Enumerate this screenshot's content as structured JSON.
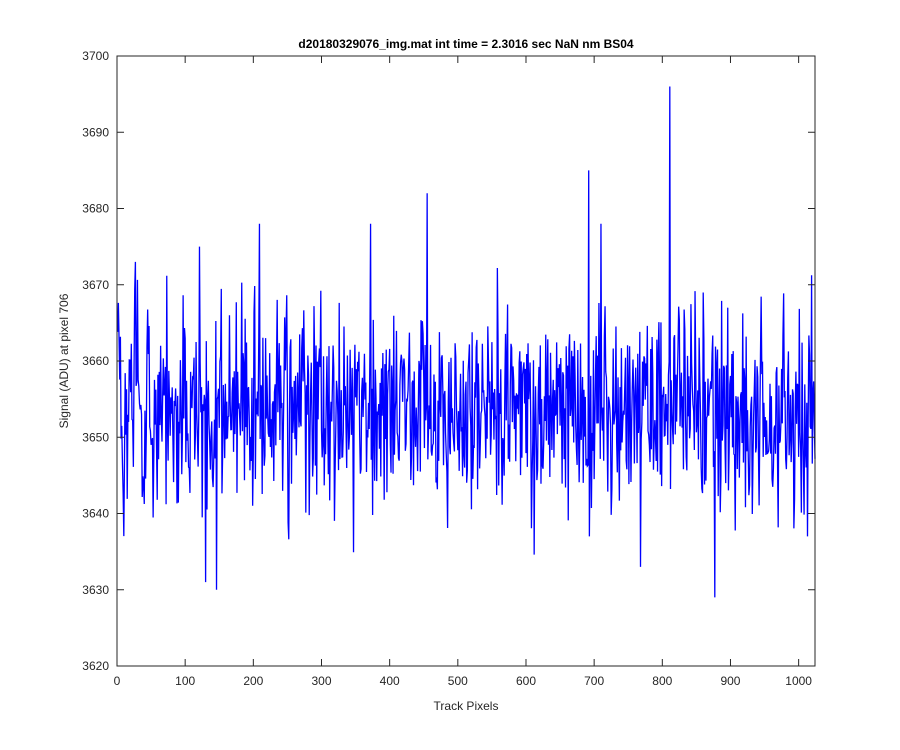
{
  "chart_data": {
    "type": "line",
    "title": "d20180329076_img.mat int time = 2.3016 sec  NaN nm BS04",
    "xlabel": "Track Pixels",
    "ylabel": "Signal (ADU) at pixel 706",
    "xlim": [
      0,
      1024
    ],
    "ylim": [
      3620,
      3700
    ],
    "xticks": [
      0,
      100,
      200,
      300,
      400,
      500,
      600,
      700,
      800,
      900,
      1000
    ],
    "yticks": [
      3620,
      3630,
      3640,
      3650,
      3660,
      3670,
      3680,
      3690,
      3700
    ],
    "grid": false,
    "box": true,
    "series": [
      {
        "color": "#0000ff",
        "n_points": 1024,
        "mean": 3654,
        "noise_amplitude": 6.5,
        "notable_points": [
          {
            "x": 3,
            "y": 3663
          },
          {
            "x": 27,
            "y": 3673
          },
          {
            "x": 121,
            "y": 3675
          },
          {
            "x": 130,
            "y": 3631
          },
          {
            "x": 146,
            "y": 3630
          },
          {
            "x": 209,
            "y": 3678
          },
          {
            "x": 372,
            "y": 3678
          },
          {
            "x": 455,
            "y": 3682
          },
          {
            "x": 692,
            "y": 3685
          },
          {
            "x": 693,
            "y": 3637
          },
          {
            "x": 710,
            "y": 3678
          },
          {
            "x": 768,
            "y": 3633
          },
          {
            "x": 811,
            "y": 3696
          },
          {
            "x": 877,
            "y": 3629
          },
          {
            "x": 1013,
            "y": 3637
          }
        ]
      }
    ]
  }
}
